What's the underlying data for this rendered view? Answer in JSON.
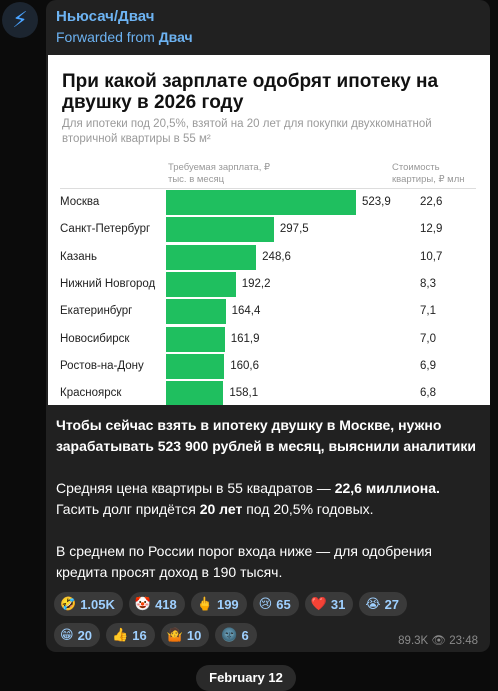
{
  "post": {
    "channel": "Ньюсач/Двач",
    "forwarded_label": "Forwarded from",
    "forwarded_from": "Двач",
    "image": {
      "title": "При какой зарплате одобрят ипотеку на двушку в 2026 году",
      "subtitle": "Для ипотеки под 20,5%, взятой на 20 лет для покупки двухкомнатной вторичной квартиры в 55 м²",
      "salary_header": "Требуемая зарплата, ₽ тыс. в месяц",
      "price_header": "Стоимость квартиры, ₽ млн",
      "bar_color": "#1fbf5f",
      "rows": [
        {
          "city": "Москва",
          "salary": {
            "value": 523.9,
            "label": "523,9"
          },
          "price": "22,6"
        },
        {
          "city": "Санкт-Петербург",
          "salary": {
            "value": 297.5,
            "label": "297,5"
          },
          "price": "12,9"
        },
        {
          "city": "Казань",
          "salary": {
            "value": 248.6,
            "label": "248,6"
          },
          "price": "10,7"
        },
        {
          "city": "Нижний Новгород",
          "salary": {
            "value": 192.2,
            "label": "192,2"
          },
          "price": "8,3"
        },
        {
          "city": "Екатеринбург",
          "salary": {
            "value": 164.4,
            "label": "164,4"
          },
          "price": "7,1"
        },
        {
          "city": "Новосибирск",
          "salary": {
            "value": 161.9,
            "label": "161,9"
          },
          "price": "7,0"
        },
        {
          "city": "Ростов-на-Дону",
          "salary": {
            "value": 160.6,
            "label": "160,6"
          },
          "price": "6,9"
        },
        {
          "city": "Красноярск",
          "salary": {
            "value": 158.1,
            "label": "158,1"
          },
          "price": "6,8"
        }
      ]
    },
    "paragraphs": [
      [
        {
          "text": "Чтобы сейчас взять в ипотеку двушку в Москве, нужно зарабатывать 523 900 рублей в месяц, выяснили аналитики",
          "bold": true
        }
      ],
      [
        {
          "text": "Средняя цена квартиры в 55 квадратов — ",
          "bold": false
        },
        {
          "text": "22,6 миллиона.",
          "bold": true
        },
        {
          "text": " Гасить долг придётся ",
          "bold": false
        },
        {
          "text": "20 лет",
          "bold": true
        },
        {
          "text": " под 20,5% годовых.",
          "bold": false
        }
      ],
      [
        {
          "text": "В среднем по России порог входа ниже — для одобрения кредита просят доход в 190 тысяч.",
          "bold": false
        }
      ]
    ],
    "reactions": [
      [
        {
          "emoji": "🤣",
          "count": "1.05K"
        },
        {
          "emoji": "🤡",
          "count": "418"
        },
        {
          "emoji": "🖕",
          "count": "199"
        },
        {
          "emoji": "😢",
          "count": "65"
        },
        {
          "emoji": "❤️",
          "count": "31"
        },
        {
          "emoji": "😭",
          "count": "27"
        }
      ],
      [
        {
          "emoji": "😁",
          "count": "20"
        },
        {
          "emoji": "👍",
          "count": "16"
        },
        {
          "emoji": "🤷",
          "count": "10"
        },
        {
          "emoji": "🌚",
          "count": "6"
        }
      ]
    ],
    "views": "89.3K",
    "time": "23:48"
  },
  "date": "February 12"
}
